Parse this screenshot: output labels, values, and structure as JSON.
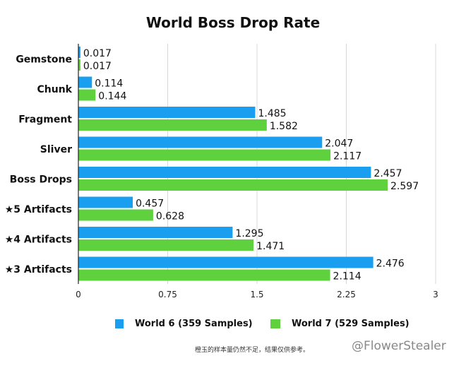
{
  "chart_data": {
    "type": "bar",
    "orientation": "horizontal",
    "title": "World Boss Drop Rate",
    "categories": [
      "Gemstone",
      "Chunk",
      "Fragment",
      "Sliver",
      "Boss Drops",
      "★5 Artifacts",
      "★4 Artifacts",
      "★3 Artifacts"
    ],
    "series": [
      {
        "name": "World 6 (359 Samples)",
        "color": "#1a9ff0",
        "values": [
          0.017,
          0.114,
          1.485,
          2.047,
          2.457,
          0.457,
          1.295,
          2.476
        ]
      },
      {
        "name": "World 7 (529 Samples)",
        "color": "#5fd13f",
        "values": [
          0.017,
          0.144,
          1.582,
          2.117,
          2.597,
          0.628,
          1.471,
          2.114
        ]
      }
    ],
    "xlim": [
      0,
      3
    ],
    "xticks": [
      "0",
      "0.75",
      "1.5",
      "2.25",
      "3"
    ],
    "grid": true,
    "legend": "bottom"
  },
  "footer": {
    "note": "橙玉的样本量仍然不足，结果仅供参考。",
    "watermark": "@FlowerStealer"
  }
}
